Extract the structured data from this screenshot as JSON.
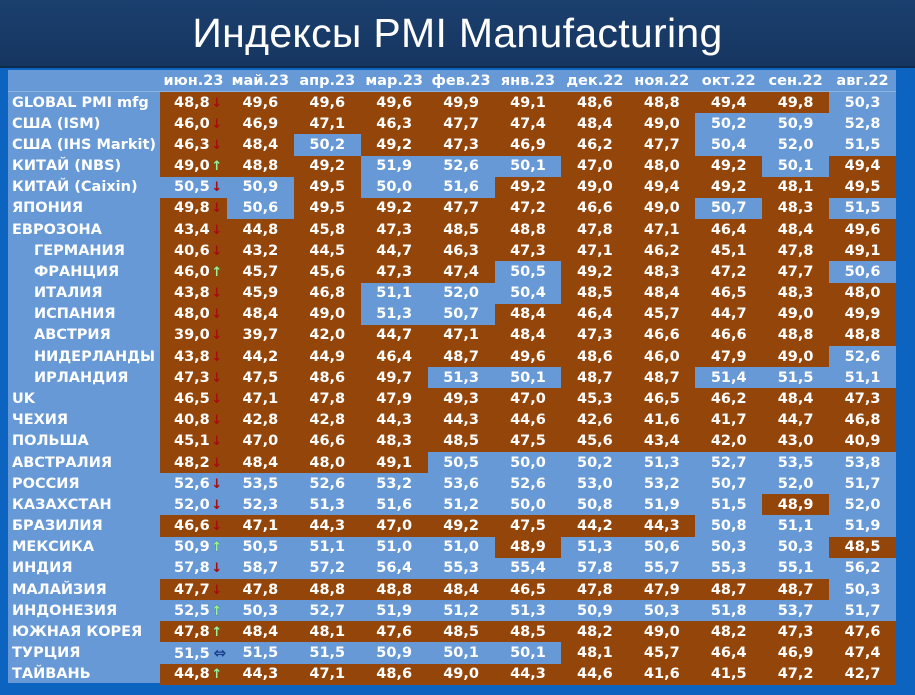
{
  "title": "Индексы PMI Manufacturing",
  "colors": {
    "below_50": "#94460a",
    "above_50": "#6699d6",
    "background": "#0d63c0",
    "title_bar": "#1b3f6e"
  },
  "chart_data": {
    "type": "table",
    "title": "Индексы PMI Manufacturing",
    "columns": [
      "июн.23",
      "май.23",
      "апр.23",
      "мар.23",
      "фев.23",
      "янв.23",
      "дек.22",
      "ноя.22",
      "окт.22",
      "сен.22",
      "авг.22"
    ],
    "threshold": 50,
    "rows": [
      {
        "name": "GLOBAL PMI mfg",
        "indent": false,
        "trend": "down",
        "values": [
          "48,8",
          "49,6",
          "49,6",
          "49,6",
          "49,9",
          "49,1",
          "48,6",
          "48,8",
          "49,4",
          "49,8",
          "50,3"
        ]
      },
      {
        "name": "США (ISM)",
        "indent": false,
        "trend": "down",
        "values": [
          "46,0",
          "46,9",
          "47,1",
          "46,3",
          "47,7",
          "47,4",
          "48,4",
          "49,0",
          "50,2",
          "50,9",
          "52,8"
        ]
      },
      {
        "name": "США (IHS Markit)",
        "indent": false,
        "trend": "down",
        "values": [
          "46,3",
          "48,4",
          "50,2",
          "49,2",
          "47,3",
          "46,9",
          "46,2",
          "47,7",
          "50,4",
          "52,0",
          "51,5"
        ]
      },
      {
        "name": "КИТАЙ (NBS)",
        "indent": false,
        "trend": "up",
        "values": [
          "49,0",
          "48,8",
          "49,2",
          "51,9",
          "52,6",
          "50,1",
          "47,0",
          "48,0",
          "49,2",
          "50,1",
          "49,4"
        ]
      },
      {
        "name": "КИТАЙ (Caixin)",
        "indent": false,
        "trend": "down",
        "values": [
          "50,5",
          "50,9",
          "49,5",
          "50,0",
          "51,6",
          "49,2",
          "49,0",
          "49,4",
          "49,2",
          "48,1",
          "49,5"
        ]
      },
      {
        "name": "ЯПОНИЯ",
        "indent": false,
        "trend": "down",
        "values": [
          "49,8",
          "50,6",
          "49,5",
          "49,2",
          "47,7",
          "47,2",
          "46,6",
          "49,0",
          "50,7",
          "48,3",
          "51,5"
        ]
      },
      {
        "name": "ЕВРОЗОНА",
        "indent": false,
        "trend": "down",
        "values": [
          "43,4",
          "44,8",
          "45,8",
          "47,3",
          "48,5",
          "48,8",
          "47,8",
          "47,1",
          "46,4",
          "48,4",
          "49,6"
        ]
      },
      {
        "name": "ГЕРМАНИЯ",
        "indent": true,
        "trend": "down",
        "values": [
          "40,6",
          "43,2",
          "44,5",
          "44,7",
          "46,3",
          "47,3",
          "47,1",
          "46,2",
          "45,1",
          "47,8",
          "49,1"
        ]
      },
      {
        "name": "ФРАНЦИЯ",
        "indent": true,
        "trend": "up",
        "values": [
          "46,0",
          "45,7",
          "45,6",
          "47,3",
          "47,4",
          "50,5",
          "49,2",
          "48,3",
          "47,2",
          "47,7",
          "50,6"
        ]
      },
      {
        "name": "ИТАЛИЯ",
        "indent": true,
        "trend": "down",
        "values": [
          "43,8",
          "45,9",
          "46,8",
          "51,1",
          "52,0",
          "50,4",
          "48,5",
          "48,4",
          "46,5",
          "48,3",
          "48,0"
        ]
      },
      {
        "name": "ИСПАНИЯ",
        "indent": true,
        "trend": "down",
        "values": [
          "48,0",
          "48,4",
          "49,0",
          "51,3",
          "50,7",
          "48,4",
          "46,4",
          "45,7",
          "44,7",
          "49,0",
          "49,9"
        ]
      },
      {
        "name": "АВСТРИЯ",
        "indent": true,
        "trend": "down",
        "values": [
          "39,0",
          "39,7",
          "42,0",
          "44,7",
          "47,1",
          "48,4",
          "47,3",
          "46,6",
          "46,6",
          "48,8",
          "48,8"
        ]
      },
      {
        "name": "НИДЕРЛАНДЫ",
        "indent": true,
        "trend": "down",
        "values": [
          "43,8",
          "44,2",
          "44,9",
          "46,4",
          "48,7",
          "49,6",
          "48,6",
          "46,0",
          "47,9",
          "49,0",
          "52,6"
        ]
      },
      {
        "name": "ИРЛАНДИЯ",
        "indent": true,
        "trend": "down",
        "values": [
          "47,3",
          "47,5",
          "48,6",
          "49,7",
          "51,3",
          "50,1",
          "48,7",
          "48,7",
          "51,4",
          "51,5",
          "51,1"
        ]
      },
      {
        "name": "UK",
        "indent": false,
        "trend": "down",
        "values": [
          "46,5",
          "47,1",
          "47,8",
          "47,9",
          "49,3",
          "47,0",
          "45,3",
          "46,5",
          "46,2",
          "48,4",
          "47,3"
        ]
      },
      {
        "name": "ЧЕХИЯ",
        "indent": false,
        "trend": "down",
        "values": [
          "40,8",
          "42,8",
          "42,8",
          "44,3",
          "44,3",
          "44,6",
          "42,6",
          "41,6",
          "41,7",
          "44,7",
          "46,8"
        ]
      },
      {
        "name": "ПОЛЬША",
        "indent": false,
        "trend": "down",
        "values": [
          "45,1",
          "47,0",
          "46,6",
          "48,3",
          "48,5",
          "47,5",
          "45,6",
          "43,4",
          "42,0",
          "43,0",
          "40,9"
        ]
      },
      {
        "name": "АВСТРАЛИЯ",
        "indent": false,
        "trend": "down",
        "values": [
          "48,2",
          "48,4",
          "48,0",
          "49,1",
          "50,5",
          "50,0",
          "50,2",
          "51,3",
          "52,7",
          "53,5",
          "53,8"
        ]
      },
      {
        "name": "РОССИЯ",
        "indent": false,
        "trend": "down",
        "values": [
          "52,6",
          "53,5",
          "52,6",
          "53,2",
          "53,6",
          "52,6",
          "53,0",
          "53,2",
          "50,7",
          "52,0",
          "51,7"
        ]
      },
      {
        "name": "КАЗАХСТАН",
        "indent": false,
        "trend": "down",
        "values": [
          "52,0",
          "52,3",
          "51,3",
          "51,6",
          "51,2",
          "50,0",
          "50,8",
          "51,9",
          "51,5",
          "48,9",
          "52,0"
        ]
      },
      {
        "name": "БРАЗИЛИЯ",
        "indent": false,
        "trend": "down",
        "values": [
          "46,6",
          "47,1",
          "44,3",
          "47,0",
          "49,2",
          "47,5",
          "44,2",
          "44,3",
          "50,8",
          "51,1",
          "51,9"
        ]
      },
      {
        "name": "МЕКСИКА",
        "indent": false,
        "trend": "up",
        "values": [
          "50,9",
          "50,5",
          "51,1",
          "51,0",
          "51,0",
          "48,9",
          "51,3",
          "50,6",
          "50,3",
          "50,3",
          "48,5"
        ]
      },
      {
        "name": "ИНДИЯ",
        "indent": false,
        "trend": "down",
        "values": [
          "57,8",
          "58,7",
          "57,2",
          "56,4",
          "55,3",
          "55,4",
          "57,8",
          "55,7",
          "55,3",
          "55,1",
          "56,2"
        ]
      },
      {
        "name": "МАЛАЙЗИЯ",
        "indent": false,
        "trend": "down",
        "values": [
          "47,7",
          "47,8",
          "48,8",
          "48,8",
          "48,4",
          "46,5",
          "47,8",
          "47,9",
          "48,7",
          "48,7",
          "50,3"
        ]
      },
      {
        "name": "ИНДОНЕЗИЯ",
        "indent": false,
        "trend": "up",
        "values": [
          "52,5",
          "50,3",
          "52,7",
          "51,9",
          "51,2",
          "51,3",
          "50,9",
          "50,3",
          "51,8",
          "53,7",
          "51,7"
        ]
      },
      {
        "name": "ЮЖНАЯ КОРЕЯ",
        "indent": false,
        "trend": "up",
        "values": [
          "47,8",
          "48,4",
          "48,1",
          "47,6",
          "48,5",
          "48,5",
          "48,2",
          "49,0",
          "48,2",
          "47,3",
          "47,6"
        ]
      },
      {
        "name": "ТУРЦИЯ",
        "indent": false,
        "trend": "flat",
        "values": [
          "51,5",
          "51,5",
          "51,5",
          "50,9",
          "50,1",
          "50,1",
          "48,1",
          "45,7",
          "46,4",
          "46,9",
          "47,4"
        ]
      },
      {
        "name": "ТАЙВАНЬ",
        "indent": false,
        "trend": "up",
        "values": [
          "44,8",
          "44,3",
          "47,1",
          "48,6",
          "49,0",
          "44,3",
          "44,6",
          "41,6",
          "41,5",
          "47,2",
          "42,7"
        ]
      }
    ]
  }
}
